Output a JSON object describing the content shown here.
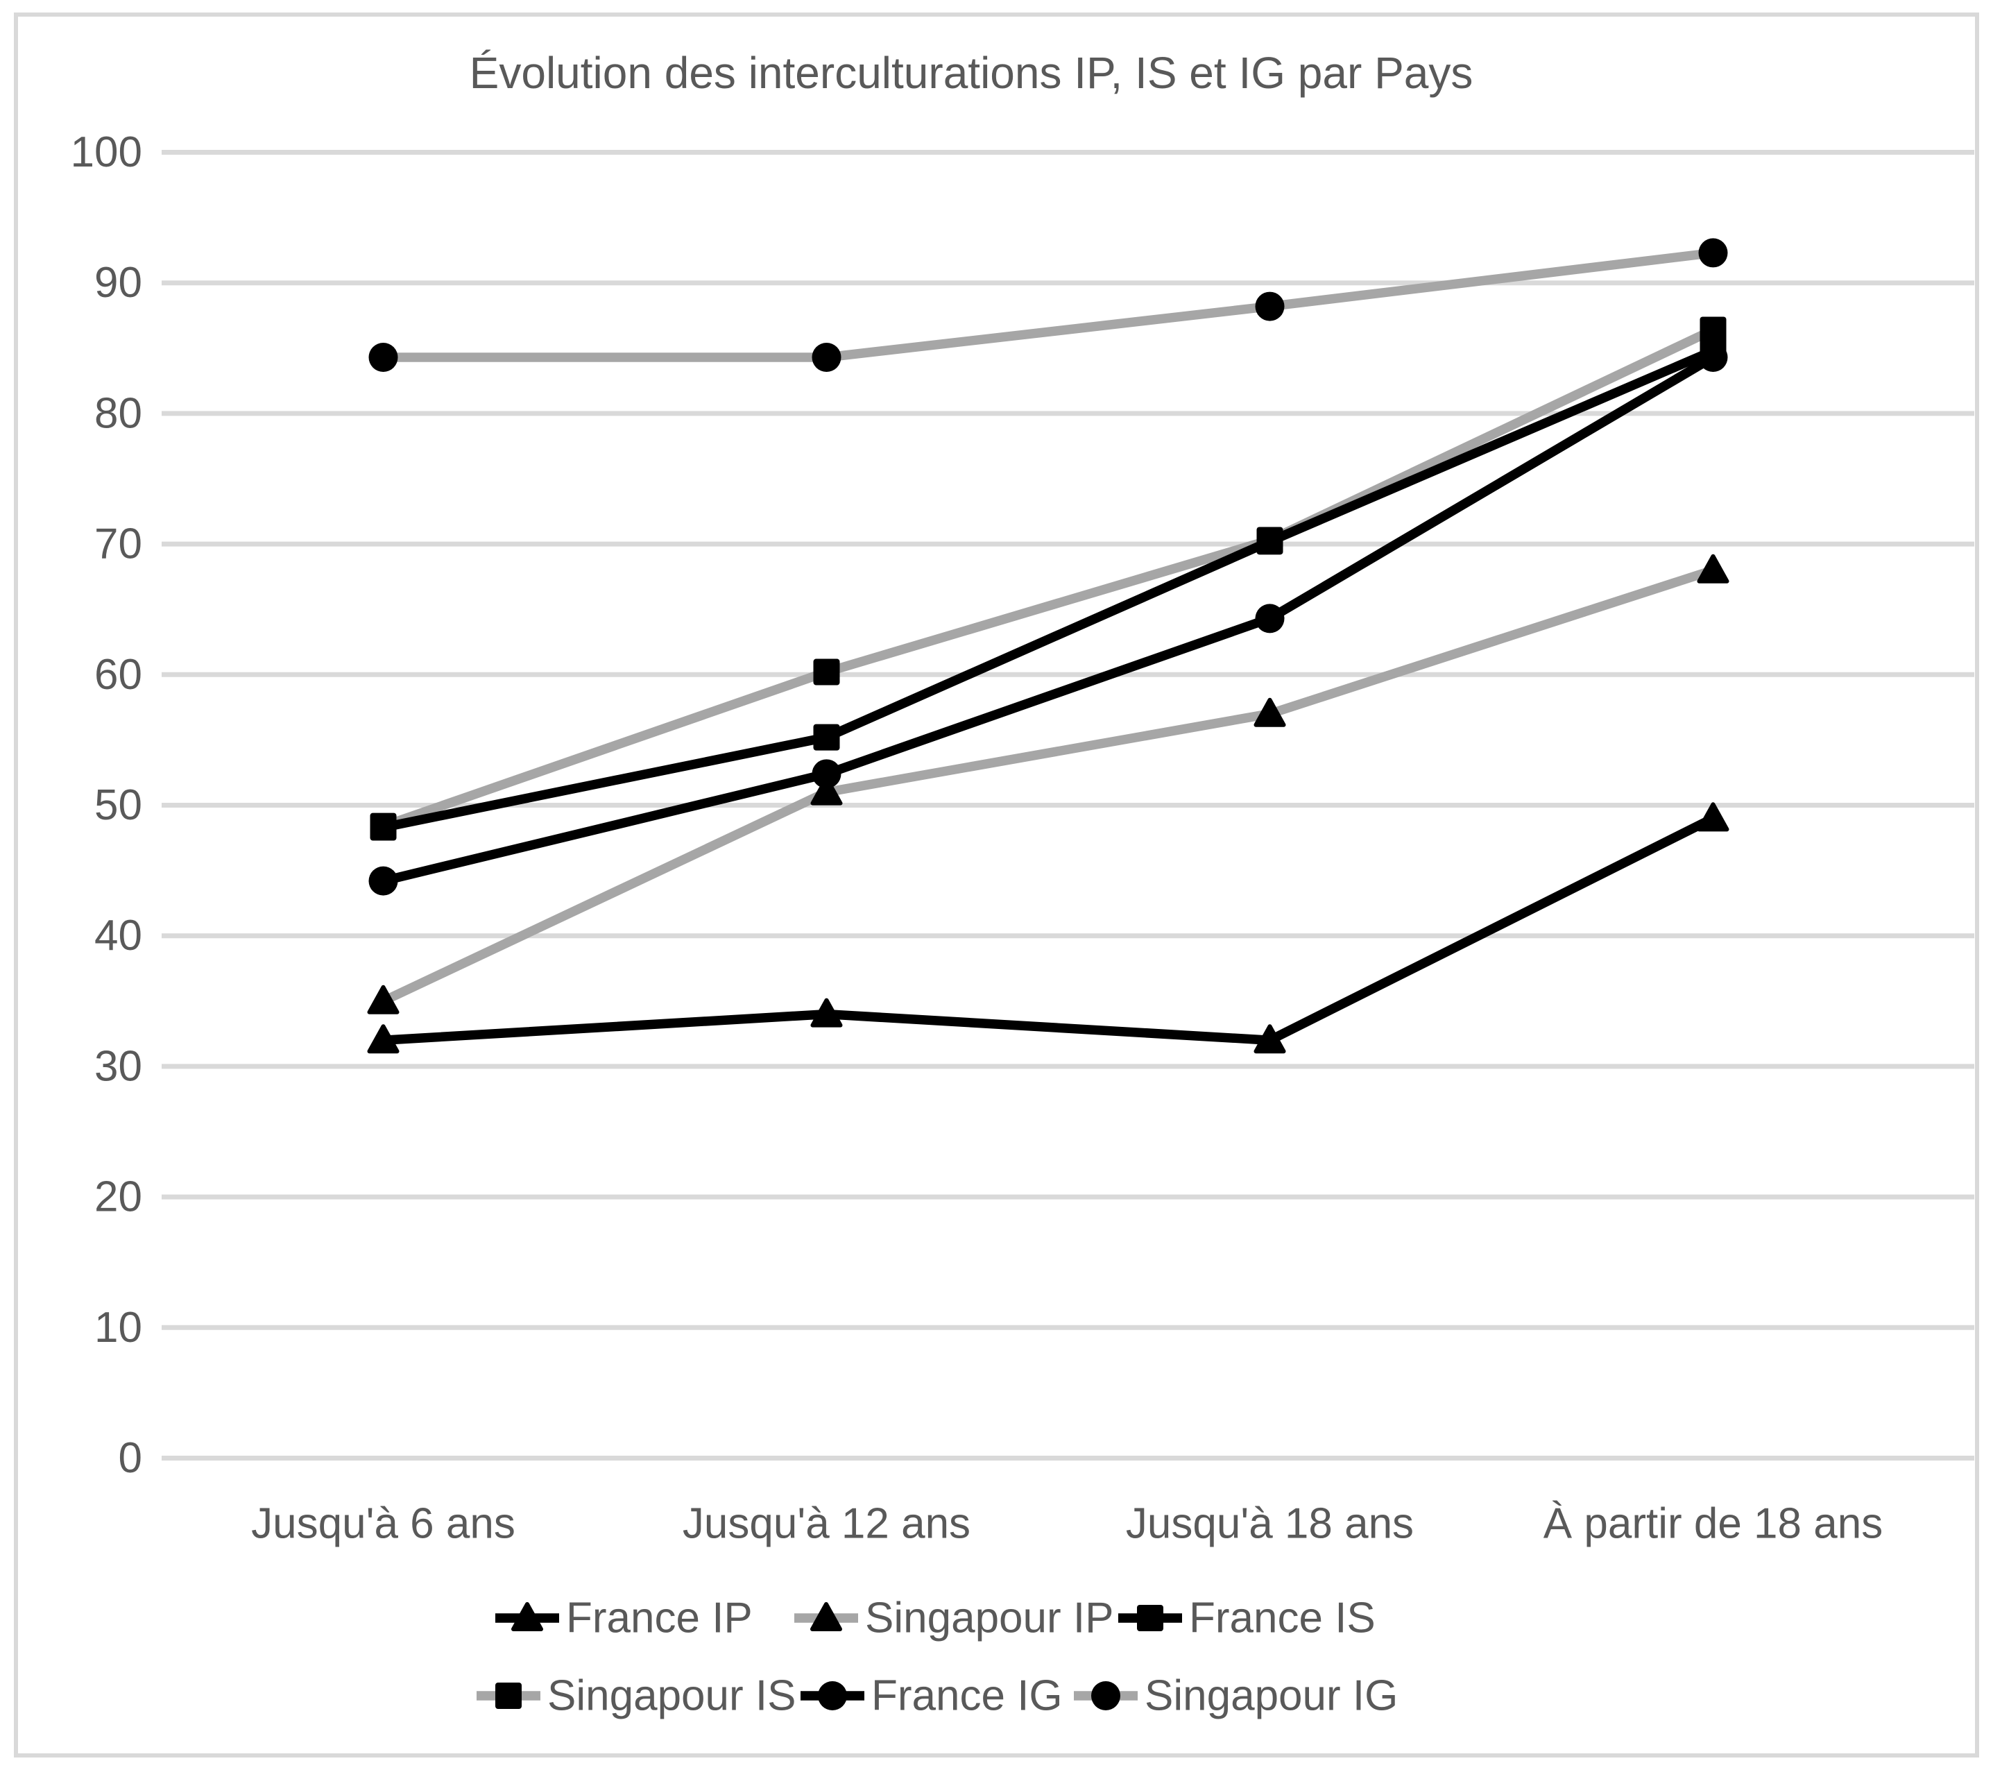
{
  "page": {
    "background": "#ffffff",
    "border_color": "#d9d9d9",
    "text_color": "#595959"
  },
  "chart_data": {
    "type": "line",
    "title": "Évolution des interculturations IP, IS et IG par Pays",
    "categories": [
      "Jusqu'à 6 ans",
      "Jusqu'à 12 ans",
      "Jusqu'à 18 ans",
      "À partir de 18 ans"
    ],
    "series": [
      {
        "name": "France IP",
        "marker": "triangle",
        "line_color": "#000000",
        "marker_color": "#000000",
        "values": [
          32,
          34,
          32,
          49
        ]
      },
      {
        "name": "Singapour IP",
        "marker": "triangle",
        "line_color": "#a6a6a6",
        "marker_color": "#000000",
        "values": [
          35,
          51,
          57,
          68
        ]
      },
      {
        "name": "France IS",
        "marker": "square",
        "line_color": "#000000",
        "marker_color": "#000000",
        "values": [
          48.3,
          55.2,
          70.2,
          84.8
        ]
      },
      {
        "name": "Singapour IS",
        "marker": "square",
        "line_color": "#a6a6a6",
        "marker_color": "#000000",
        "values": [
          48.4,
          60.2,
          70.3,
          86.4
        ]
      },
      {
        "name": "France IG",
        "marker": "circle",
        "line_color": "#000000",
        "marker_color": "#000000",
        "values": [
          44.2,
          52.4,
          64.3,
          84.3
        ]
      },
      {
        "name": "Singapour IG",
        "marker": "circle",
        "line_color": "#a6a6a6",
        "marker_color": "#000000",
        "values": [
          84.3,
          84.3,
          88.2,
          92.3
        ]
      }
    ],
    "ylim": [
      0,
      100
    ],
    "yticks": [
      0,
      10,
      20,
      30,
      40,
      50,
      60,
      70,
      80,
      90,
      100
    ],
    "grid": true,
    "gridline_color": "#d9d9d9",
    "legend_position": "bottom",
    "legend_rows": [
      [
        "France IP",
        "Singapour IP",
        "France IS"
      ],
      [
        "Singapour IS",
        "France IG",
        "Singapour IG"
      ]
    ]
  }
}
